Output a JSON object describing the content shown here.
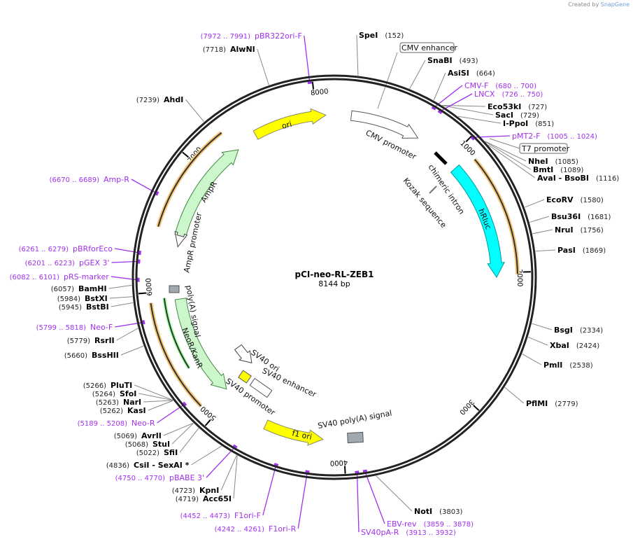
{
  "credit": {
    "prefix": "Created by",
    "brand": "SnapGene"
  },
  "plasmid": {
    "name": "pCI-neo-RL-ZEB1",
    "length_label": "8144 bp",
    "length": 8144
  },
  "ticks": [
    "1000",
    "2000",
    "3000",
    "4000",
    "5000",
    "6000",
    "7000",
    "8000"
  ],
  "colors": {
    "primer": "#a030f0",
    "ori": "#ffff00",
    "hRluc": "#00ffff",
    "marker": "#ccf7cc",
    "orf": "#f5c87a",
    "polyA": "#a0a8b0"
  },
  "enzymes": [
    {
      "name": "SpeI",
      "pos": "(152)",
      "bp": 152
    },
    {
      "name": "SnaBI",
      "pos": "(493)",
      "bp": 493
    },
    {
      "name": "AsiSI",
      "pos": "(664)",
      "bp": 664
    },
    {
      "name": "Eco53kI",
      "pos": "(727)",
      "bp": 727
    },
    {
      "name": "SacI",
      "pos": "(729)",
      "bp": 729
    },
    {
      "name": "I-PpoI",
      "pos": "(851)",
      "bp": 851
    },
    {
      "name": "NheI",
      "pos": "(1085)",
      "bp": 1085
    },
    {
      "name": "BmtI",
      "pos": "(1089)",
      "bp": 1089
    },
    {
      "name": "AvaI  - BsoBI",
      "pos": "(1116)",
      "bp": 1116
    },
    {
      "name": "EcoRV",
      "pos": "(1580)",
      "bp": 1580
    },
    {
      "name": "Bsu36I",
      "pos": "(1681)",
      "bp": 1681
    },
    {
      "name": "NruI",
      "pos": "(1756)",
      "bp": 1756
    },
    {
      "name": "PasI",
      "pos": "(1869)",
      "bp": 1869
    },
    {
      "name": "BsgI",
      "pos": "(2334)",
      "bp": 2334
    },
    {
      "name": "XbaI",
      "pos": "(2424)",
      "bp": 2424
    },
    {
      "name": "PmlI",
      "pos": "(2538)",
      "bp": 2538
    },
    {
      "name": "PflMI",
      "pos": "(2779)",
      "bp": 2779
    },
    {
      "name": "NotI",
      "pos": "(3803)",
      "bp": 3803
    },
    {
      "name": "KpnI",
      "pos": "(4723)",
      "bp": 4723
    },
    {
      "name": "Acc65I",
      "pos": "(4719)",
      "bp": 4719
    },
    {
      "name": "CsiI  - SexAI *",
      "pos": "(4836)",
      "bp": 4836
    },
    {
      "name": "SfiI",
      "pos": "(5022)",
      "bp": 5022
    },
    {
      "name": "StuI",
      "pos": "(5068)",
      "bp": 5068
    },
    {
      "name": "AvrII",
      "pos": "(5069)",
      "bp": 5069
    },
    {
      "name": "KasI",
      "pos": "(5262)",
      "bp": 5262
    },
    {
      "name": "NarI",
      "pos": "(5263)",
      "bp": 5263
    },
    {
      "name": "SfoI",
      "pos": "(5264)",
      "bp": 5264
    },
    {
      "name": "PluTI",
      "pos": "(5266)",
      "bp": 5266
    },
    {
      "name": "BssHII",
      "pos": "(5660)",
      "bp": 5660
    },
    {
      "name": "RsrII",
      "pos": "(5779)",
      "bp": 5779
    },
    {
      "name": "BstBI",
      "pos": "(5945)",
      "bp": 5945
    },
    {
      "name": "BstXI",
      "pos": "(5984)",
      "bp": 5984
    },
    {
      "name": "BamHI",
      "pos": "(6057)",
      "bp": 6057
    },
    {
      "name": "AhdI",
      "pos": "(7239)",
      "bp": 7239
    },
    {
      "name": "AlwNI",
      "pos": "(7718)",
      "bp": 7718
    }
  ],
  "primers": [
    {
      "name": "CMV-F",
      "range": "(680 .. 700)",
      "bp": 690
    },
    {
      "name": "LNCX",
      "range": "(726 .. 750)",
      "bp": 738
    },
    {
      "name": "pMT2-F",
      "range": "(1005 .. 1024)",
      "bp": 1015
    },
    {
      "name": "EBV-rev",
      "range": "(3859 .. 3878)",
      "bp": 3868
    },
    {
      "name": "SV40pA-R",
      "range": "(3913 .. 3932)",
      "bp": 3922
    },
    {
      "name": "F1ori-R",
      "range": "(4242 .. 4261)",
      "bp": 4251
    },
    {
      "name": "F1ori-F",
      "range": "(4452 .. 4473)",
      "bp": 4462
    },
    {
      "name": "pBABE 3'",
      "range": "(4750 .. 4770)",
      "bp": 4760
    },
    {
      "name": "Neo-R",
      "range": "(5189 .. 5208)",
      "bp": 5198
    },
    {
      "name": "Neo-F",
      "range": "(5799 .. 5818)",
      "bp": 5808
    },
    {
      "name": "pRS-marker",
      "range": "(6082 .. 6101)",
      "bp": 6091
    },
    {
      "name": "pGEX 3'",
      "range": "(6201 .. 6223)",
      "bp": 6212
    },
    {
      "name": "pBRforEco",
      "range": "(6261 .. 6279)",
      "bp": 6270
    },
    {
      "name": "Amp-R",
      "range": "(6670 .. 6689)",
      "bp": 6680
    },
    {
      "name": "pBR322ori-F",
      "range": "(7972 .. 7991)",
      "bp": 7981
    }
  ],
  "features": {
    "cmv_enhancer": "CMV enhancer",
    "t7_promoter": "T7 promoter",
    "cmv_promoter": "CMV promoter",
    "ori": "ori",
    "hrluc": "hRluc",
    "chimeric_intron": "chimeric intron",
    "kozak": "Kozak sequence",
    "ampr": "AmpR",
    "ampr_promoter": "AmpR promoter",
    "neor": "NeoR/KanR",
    "polya": "poly(A) signal",
    "sv40_ori": "SV40 ori",
    "sv40_enhancer": "SV40 enhancer",
    "sv40_promoter": "SV40 promoter",
    "f1_ori": "f1 ori",
    "sv40_polya": "SV40 poly(A) signal"
  }
}
